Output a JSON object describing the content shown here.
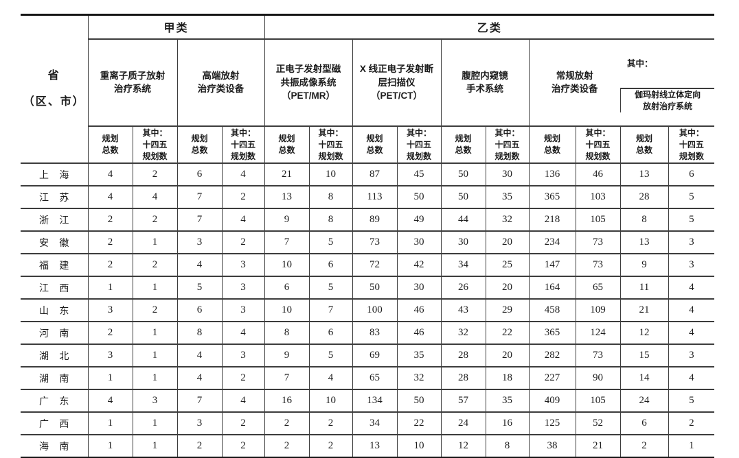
{
  "colors": {
    "background": "#ffffff",
    "text": "#1c1c1c",
    "grid_line": "#3c3c3c",
    "heavy_line": "#151515"
  },
  "table": {
    "province_header": "省\n（区、市）",
    "class_a": "甲类",
    "class_b": "乙类",
    "groups": [
      "重离子质子放射\n治疗系统",
      "高端放射\n治疗类设备",
      "正电子发射型磁\n共振成像系统\n（PET/MR）",
      "X 线正电子发射断\n层扫描仪\n（PET/CT）",
      "腹腔内窥镜\n手术系统",
      "常规放射\n治疗类设备"
    ],
    "group7_prefix": "其中：",
    "group7_name": "伽玛射线立体定向\n放射治疗系统",
    "sub_total": "规划\n总数",
    "sub_plan": "其中：\n十四五\n规划数",
    "rows": [
      {
        "province": "上海",
        "values": [
          4,
          2,
          6,
          4,
          21,
          10,
          87,
          45,
          50,
          30,
          136,
          46,
          13,
          6
        ]
      },
      {
        "province": "江苏",
        "values": [
          4,
          4,
          7,
          2,
          13,
          8,
          113,
          50,
          50,
          35,
          365,
          103,
          28,
          5
        ]
      },
      {
        "province": "浙江",
        "values": [
          2,
          2,
          7,
          4,
          9,
          8,
          89,
          49,
          44,
          32,
          218,
          105,
          8,
          5
        ]
      },
      {
        "province": "安徽",
        "values": [
          2,
          1,
          3,
          2,
          7,
          5,
          73,
          30,
          30,
          20,
          234,
          73,
          13,
          3
        ]
      },
      {
        "province": "福建",
        "values": [
          2,
          2,
          4,
          3,
          10,
          6,
          72,
          42,
          34,
          25,
          147,
          73,
          9,
          3
        ]
      },
      {
        "province": "江西",
        "values": [
          1,
          1,
          5,
          3,
          6,
          5,
          50,
          30,
          26,
          20,
          164,
          65,
          11,
          4
        ]
      },
      {
        "province": "山东",
        "values": [
          3,
          2,
          6,
          3,
          10,
          7,
          100,
          46,
          43,
          29,
          458,
          109,
          21,
          4
        ]
      },
      {
        "province": "河南",
        "values": [
          2,
          1,
          8,
          4,
          8,
          6,
          83,
          46,
          32,
          22,
          365,
          124,
          12,
          4
        ]
      },
      {
        "province": "湖北",
        "values": [
          3,
          1,
          4,
          3,
          9,
          5,
          69,
          35,
          28,
          20,
          282,
          73,
          15,
          3
        ]
      },
      {
        "province": "湖南",
        "values": [
          1,
          1,
          4,
          2,
          7,
          4,
          65,
          32,
          28,
          18,
          227,
          90,
          14,
          4
        ]
      },
      {
        "province": "广东",
        "values": [
          4,
          3,
          7,
          4,
          16,
          10,
          134,
          50,
          57,
          35,
          409,
          105,
          24,
          5
        ]
      },
      {
        "province": "广西",
        "values": [
          1,
          1,
          3,
          2,
          2,
          2,
          34,
          22,
          24,
          16,
          125,
          52,
          6,
          2
        ]
      },
      {
        "province": "海南",
        "values": [
          1,
          1,
          2,
          2,
          2,
          2,
          13,
          10,
          12,
          8,
          38,
          21,
          2,
          1
        ]
      }
    ]
  }
}
